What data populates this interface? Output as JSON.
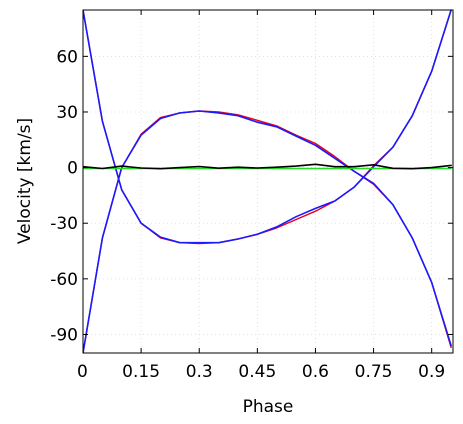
{
  "chart_data": {
    "type": "line",
    "title": "",
    "xlabel": "Phase",
    "ylabel": "Velocity [km/s]",
    "xlim": [
      0,
      0.955
    ],
    "ylim": [
      -100,
      85
    ],
    "grid": true,
    "xticks": [
      0,
      0.15,
      0.3,
      0.45,
      0.6,
      0.75,
      0.9
    ],
    "xtick_labels": [
      "0",
      "0.15",
      "0.3",
      "0.45",
      "0.6",
      "0.75",
      "0.9"
    ],
    "yticks": [
      -90,
      -60,
      -30,
      0,
      30,
      60
    ],
    "ytick_labels": [
      "-90",
      "-60",
      "-30",
      "0",
      "30",
      "60"
    ],
    "x": [
      0,
      0.05,
      0.1,
      0.15,
      0.2,
      0.25,
      0.3,
      0.35,
      0.4,
      0.45,
      0.5,
      0.55,
      0.6,
      0.65,
      0.7,
      0.75,
      0.8,
      0.85,
      0.9,
      0.95
    ],
    "series": [
      {
        "color": "#e8001c",
        "width": 1.4,
        "values": [
          -100,
          -38,
          0,
          18,
          27,
          29.5,
          30.5,
          30,
          28.5,
          25.5,
          22.5,
          17.5,
          13,
          6,
          -2,
          -9,
          -20,
          -38,
          -62,
          -97
        ]
      },
      {
        "color": "#e8001c",
        "width": 1.4,
        "values": [
          85,
          25,
          -12,
          -30,
          -38,
          -40.5,
          -41,
          -40.5,
          -38.5,
          -36,
          -32.5,
          -28,
          -23.5,
          -18,
          -10.5,
          1,
          11,
          28,
          52,
          85
        ]
      },
      {
        "color": "#1a1aff",
        "width": 1.6,
        "values": [
          -100,
          -38,
          0,
          17.5,
          26.5,
          29.5,
          30.5,
          29.5,
          28,
          24.5,
          22,
          17,
          12,
          5,
          -2,
          -8.5,
          -20,
          -38,
          -62,
          -96
        ]
      },
      {
        "color": "#1a1aff",
        "width": 1.6,
        "values": [
          85,
          25,
          -12,
          -30,
          -37.5,
          -40.5,
          -40.5,
          -40.5,
          -38.5,
          -36,
          -32,
          -26.5,
          -22,
          -18,
          -10.5,
          0.5,
          11,
          28,
          52,
          85
        ]
      },
      {
        "color": "#22dd22",
        "width": 1.4,
        "values": [
          -0.5,
          -0.5,
          -0.5,
          -0.5,
          -0.5,
          -0.5,
          -0.5,
          -0.5,
          -0.5,
          -0.5,
          -0.5,
          -0.5,
          -0.5,
          -0.5,
          -0.5,
          -0.5,
          -0.5,
          -0.5,
          -0.5,
          -0.5
        ]
      },
      {
        "color": "#000000",
        "width": 1.6,
        "values": [
          0.5,
          -0.5,
          0.8,
          -0.2,
          -0.6,
          0,
          0.6,
          -0.3,
          0.2,
          -0.2,
          0.2,
          0.8,
          1.8,
          0.5,
          0.5,
          1.5,
          -0.4,
          -0.6,
          0,
          1.2
        ]
      }
    ]
  }
}
